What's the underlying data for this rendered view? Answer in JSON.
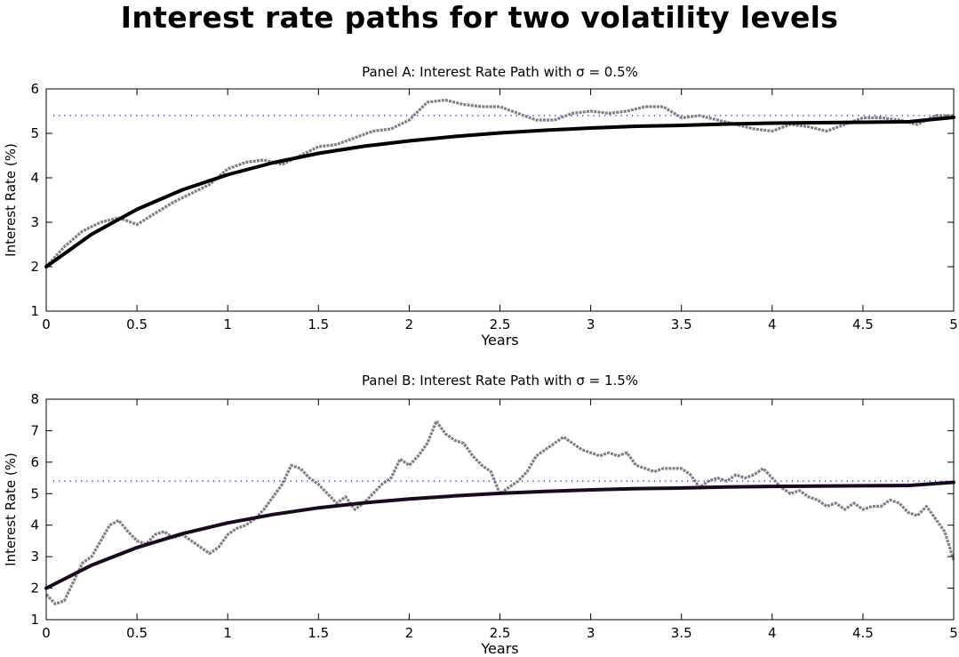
{
  "title": "Interest rate paths for two volatility levels",
  "chart_data": [
    {
      "type": "line",
      "title": "Panel A: Interest Rate Path with σ = 0.5%",
      "xlabel": "Years",
      "ylabel": "Interest Rate (%)",
      "xlim": [
        0,
        5
      ],
      "ylim": [
        1,
        6
      ],
      "xticks": [
        "0",
        "0.5",
        "1",
        "1.5",
        "2",
        "2.5",
        "3",
        "3.5",
        "4",
        "4.5",
        "5"
      ],
      "yticks": [
        "1",
        "2",
        "3",
        "4",
        "5",
        "6"
      ],
      "grid": false,
      "reference_level": 5.4,
      "colors": {
        "simulated": "#7f7f7f",
        "expected": "#000000",
        "reference": "#0000ff"
      },
      "series": [
        {
          "role": "simulated",
          "x": [
            0,
            0.1,
            0.2,
            0.3,
            0.4,
            0.5,
            0.6,
            0.7,
            0.8,
            0.9,
            1.0,
            1.1,
            1.2,
            1.3,
            1.4,
            1.5,
            1.6,
            1.7,
            1.8,
            1.9,
            2.0,
            2.1,
            2.2,
            2.3,
            2.4,
            2.5,
            2.6,
            2.7,
            2.8,
            2.9,
            3.0,
            3.1,
            3.2,
            3.3,
            3.4,
            3.5,
            3.6,
            3.7,
            3.8,
            3.9,
            4.0,
            4.1,
            4.2,
            4.3,
            4.4,
            4.5,
            4.6,
            4.7,
            4.8,
            4.9,
            5.0
          ],
          "values": [
            2.0,
            2.45,
            2.8,
            3.0,
            3.1,
            2.95,
            3.2,
            3.45,
            3.65,
            3.85,
            4.2,
            4.35,
            4.4,
            4.3,
            4.5,
            4.7,
            4.75,
            4.9,
            5.05,
            5.1,
            5.3,
            5.7,
            5.75,
            5.65,
            5.6,
            5.6,
            5.45,
            5.3,
            5.3,
            5.45,
            5.5,
            5.45,
            5.5,
            5.6,
            5.6,
            5.35,
            5.4,
            5.3,
            5.2,
            5.1,
            5.05,
            5.2,
            5.15,
            5.05,
            5.2,
            5.35,
            5.35,
            5.3,
            5.2,
            5.4,
            5.4
          ]
        },
        {
          "role": "expected",
          "x": [
            0,
            0.25,
            0.5,
            0.75,
            1.0,
            1.25,
            1.5,
            1.75,
            2.0,
            2.25,
            2.5,
            2.75,
            3.0,
            3.25,
            3.5,
            3.75,
            4.0,
            4.25,
            4.5,
            4.75,
            5.0
          ],
          "values": [
            2.0,
            2.73,
            3.29,
            3.73,
            4.07,
            4.34,
            4.55,
            4.71,
            4.83,
            4.93,
            5.01,
            5.07,
            5.12,
            5.16,
            5.18,
            5.21,
            5.23,
            5.24,
            5.25,
            5.26,
            5.36
          ]
        }
      ]
    },
    {
      "type": "line",
      "title": "Panel B: Interest Rate Path with σ = 1.5%",
      "xlabel": "Years",
      "ylabel": "Interest Rate (%)",
      "xlim": [
        0,
        5
      ],
      "ylim": [
        1,
        8
      ],
      "xticks": [
        "0",
        "0.5",
        "1",
        "1.5",
        "2",
        "2.5",
        "3",
        "3.5",
        "4",
        "4.5",
        "5"
      ],
      "yticks": [
        "1",
        "2",
        "3",
        "4",
        "5",
        "6",
        "7",
        "8"
      ],
      "grid": false,
      "reference_level": 5.4,
      "colors": {
        "simulated": "#7f7f7f",
        "expected": "#1a0a1f",
        "reference": "#0000ff"
      },
      "series": [
        {
          "role": "simulated",
          "x": [
            0,
            0.05,
            0.1,
            0.15,
            0.2,
            0.25,
            0.3,
            0.35,
            0.4,
            0.45,
            0.5,
            0.55,
            0.6,
            0.65,
            0.7,
            0.75,
            0.8,
            0.85,
            0.9,
            0.95,
            1.0,
            1.05,
            1.1,
            1.15,
            1.2,
            1.25,
            1.3,
            1.35,
            1.4,
            1.45,
            1.5,
            1.55,
            1.6,
            1.65,
            1.7,
            1.75,
            1.8,
            1.85,
            1.9,
            1.95,
            2.0,
            2.05,
            2.1,
            2.15,
            2.2,
            2.25,
            2.3,
            2.35,
            2.4,
            2.45,
            2.5,
            2.55,
            2.6,
            2.65,
            2.7,
            2.75,
            2.8,
            2.85,
            2.9,
            2.95,
            3.0,
            3.05,
            3.1,
            3.15,
            3.2,
            3.25,
            3.3,
            3.35,
            3.4,
            3.45,
            3.5,
            3.55,
            3.6,
            3.65,
            3.7,
            3.75,
            3.8,
            3.85,
            3.9,
            3.95,
            4.0,
            4.05,
            4.1,
            4.15,
            4.2,
            4.25,
            4.3,
            4.35,
            4.4,
            4.45,
            4.5,
            4.55,
            4.6,
            4.65,
            4.7,
            4.75,
            4.8,
            4.85,
            4.9,
            4.95,
            5.0
          ],
          "values": [
            1.8,
            1.5,
            1.6,
            2.2,
            2.8,
            3.0,
            3.5,
            4.0,
            4.15,
            3.8,
            3.5,
            3.4,
            3.7,
            3.8,
            3.6,
            3.7,
            3.5,
            3.3,
            3.1,
            3.3,
            3.7,
            3.9,
            4.0,
            4.2,
            4.5,
            4.9,
            5.3,
            5.9,
            5.8,
            5.5,
            5.3,
            5.0,
            4.7,
            4.9,
            4.5,
            4.7,
            5.0,
            5.3,
            5.5,
            6.1,
            5.9,
            6.2,
            6.6,
            7.3,
            6.9,
            6.7,
            6.6,
            6.2,
            5.9,
            5.7,
            5.0,
            5.2,
            5.4,
            5.7,
            6.2,
            6.4,
            6.6,
            6.8,
            6.6,
            6.4,
            6.3,
            6.2,
            6.3,
            6.2,
            6.3,
            5.9,
            5.8,
            5.7,
            5.8,
            5.8,
            5.8,
            5.6,
            5.2,
            5.4,
            5.5,
            5.4,
            5.6,
            5.5,
            5.6,
            5.8,
            5.5,
            5.2,
            5.0,
            5.1,
            4.9,
            4.8,
            4.6,
            4.7,
            4.5,
            4.7,
            4.5,
            4.6,
            4.6,
            4.8,
            4.7,
            4.4,
            4.3,
            4.6,
            4.2,
            3.8,
            2.9
          ]
        },
        {
          "role": "expected",
          "x": [
            0,
            0.25,
            0.5,
            0.75,
            1.0,
            1.25,
            1.5,
            1.75,
            2.0,
            2.25,
            2.5,
            2.75,
            3.0,
            3.25,
            3.5,
            3.75,
            4.0,
            4.25,
            4.5,
            4.75,
            5.0
          ],
          "values": [
            2.0,
            2.73,
            3.29,
            3.73,
            4.07,
            4.34,
            4.55,
            4.71,
            4.83,
            4.93,
            5.01,
            5.07,
            5.12,
            5.16,
            5.18,
            5.21,
            5.23,
            5.24,
            5.25,
            5.26,
            5.36
          ]
        }
      ]
    }
  ]
}
